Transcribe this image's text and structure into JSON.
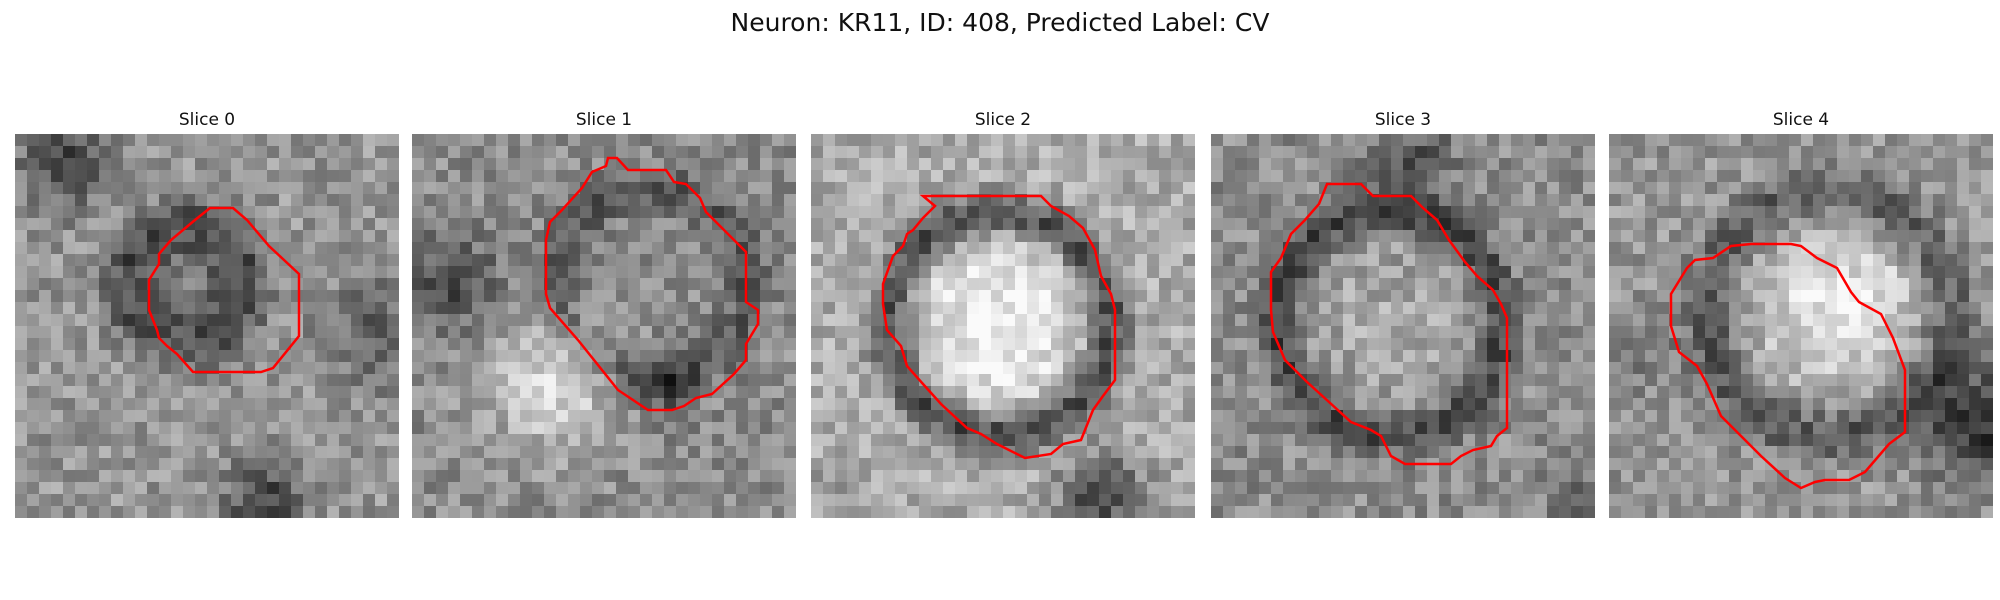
{
  "figure": {
    "title": "Neuron: KR11, ID: 408, Predicted Label: CV"
  },
  "panels": [
    {
      "title": "Slice 0"
    },
    {
      "title": "Slice 1"
    },
    {
      "title": "Slice 2"
    },
    {
      "title": "Slice 3"
    },
    {
      "title": "Slice 4"
    }
  ],
  "colors": {
    "contour": "#ff0000",
    "background": "#ffffff"
  }
}
